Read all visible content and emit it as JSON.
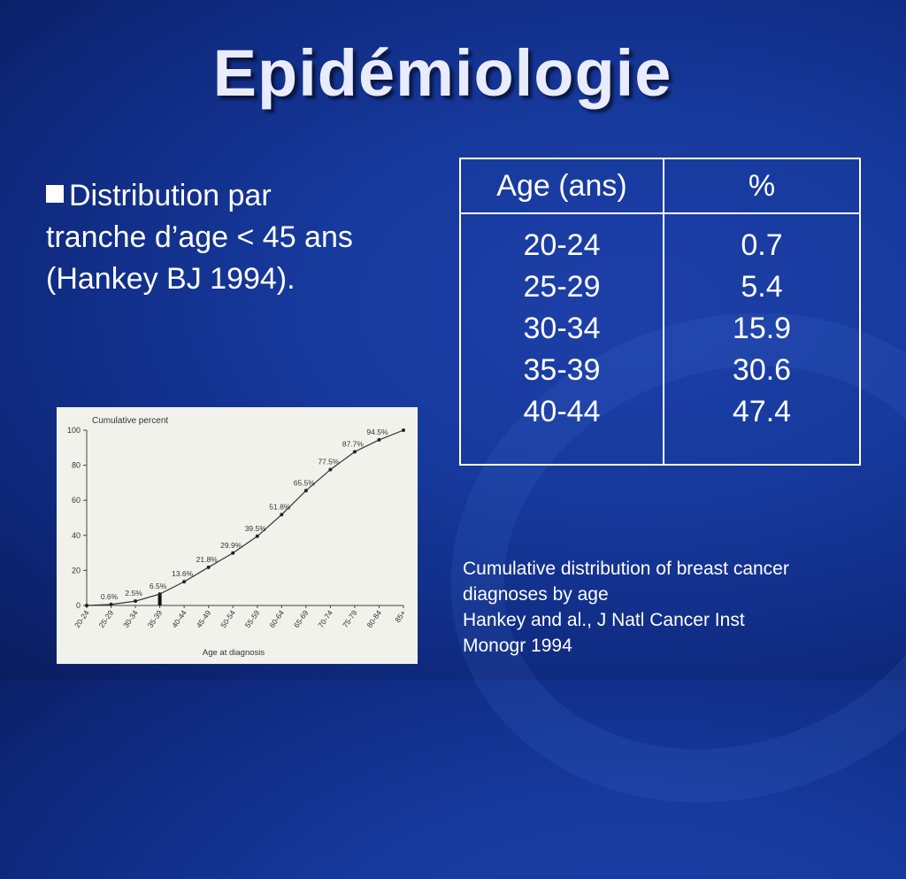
{
  "slide": {
    "title": "Epidémiologie",
    "bullet_line1": "Distribution par",
    "bullet_line2": "tranche d’age < 45 ans",
    "bullet_line3": "(Hankey BJ 1994).",
    "table": {
      "headers": [
        "Age (ans)",
        "%"
      ],
      "ages": [
        "20-24",
        "25-29",
        "30-34",
        "35-39",
        "40-44"
      ],
      "percents": [
        "0.7",
        "5.4",
        "15.9",
        "30.6",
        "47.4"
      ]
    },
    "caption_line1": "Cumulative distribution of breast cancer",
    "caption_line2": "diagnoses by age",
    "caption_line3": "Hankey and al., J Natl Cancer Inst",
    "caption_line4": "Monogr 1994"
  },
  "chart_data": {
    "type": "line",
    "title": "Cumulative percent",
    "xlabel": "Age at diagnosis",
    "ylabel": "",
    "ylim": [
      0,
      100
    ],
    "yticks": [
      "0",
      "20",
      "40",
      "60",
      "80",
      "100"
    ],
    "categories": [
      "20-24",
      "25-29",
      "30-34",
      "35-39",
      "40-44",
      "45-49",
      "50-54",
      "55-59",
      "60-64",
      "65-69",
      "70-74",
      "75-79",
      "80-84",
      "85+"
    ],
    "values": [
      0,
      0.6,
      2.5,
      6.5,
      13.6,
      21.8,
      29.9,
      39.5,
      51.8,
      65.5,
      77.5,
      87.7,
      94.5,
      100
    ],
    "point_labels": [
      "",
      "0.6%",
      "2.5%",
      "6.5%",
      "13.6%",
      "21.8%",
      "29.9%",
      "39.5%",
      "51.8%",
      "65.5%",
      "77.5%",
      "87.7%",
      "94.5%",
      ""
    ],
    "highlight_category": "35-39",
    "grid": false
  }
}
